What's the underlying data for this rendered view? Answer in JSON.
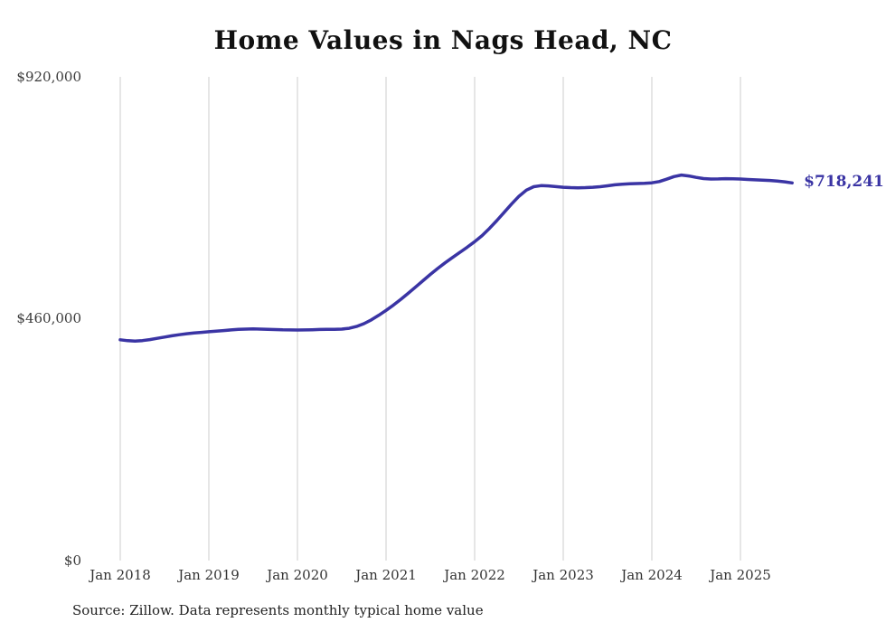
{
  "title": "Home Values in Nags Head, NC",
  "source_note": "Source: Zillow. Data represents monthly typical home value",
  "chart_data": {
    "type": "line",
    "title": "Home Values in Nags Head, NC",
    "series_name": "Monthly typical home value",
    "line_color": "#3a34a4",
    "grid_color": "#cccccc",
    "ylim": [
      0,
      920000
    ],
    "y_ticks": [
      {
        "value": 0,
        "label": "$0"
      },
      {
        "value": 460000,
        "label": "$460,000"
      },
      {
        "value": 920000,
        "label": "$920,000"
      }
    ],
    "x_ticks": [
      "Jan 2018",
      "Jan 2019",
      "Jan 2020",
      "Jan 2021",
      "Jan 2022",
      "Jan 2023",
      "Jan 2024",
      "Jan 2025"
    ],
    "x_unit": "month",
    "x_start": "Jan 2018",
    "x_end": "Aug 2025",
    "end_label": "$718,241",
    "end_value": 718241,
    "values": [
      420000,
      418200,
      417400,
      418300,
      420200,
      422600,
      425100,
      427500,
      429600,
      431400,
      432900,
      434100,
      435200,
      436300,
      437500,
      438700,
      439700,
      440300,
      440500,
      440300,
      439900,
      439400,
      438900,
      438600,
      438500,
      438700,
      439100,
      439600,
      439800,
      439700,
      440200,
      441800,
      445200,
      450600,
      457800,
      466400,
      475800,
      485900,
      496800,
      508400,
      520300,
      532300,
      544200,
      555600,
      566300,
      576400,
      586200,
      596100,
      606500,
      618100,
      631600,
      646600,
      662400,
      678100,
      692800,
      704500,
      711100,
      713200,
      712600,
      711300,
      710100,
      709300,
      709000,
      709300,
      710000,
      711100,
      712800,
      714600,
      715900,
      716600,
      717100,
      717600,
      718400,
      720800,
      725300,
      730400,
      733200,
      731600,
      728700,
      726500,
      725600,
      725900,
      726400,
      726200,
      725700,
      724800,
      724100,
      723600,
      723000,
      721900,
      720300,
      718241
    ],
    "legend": "none",
    "grid": "vertical-only"
  }
}
